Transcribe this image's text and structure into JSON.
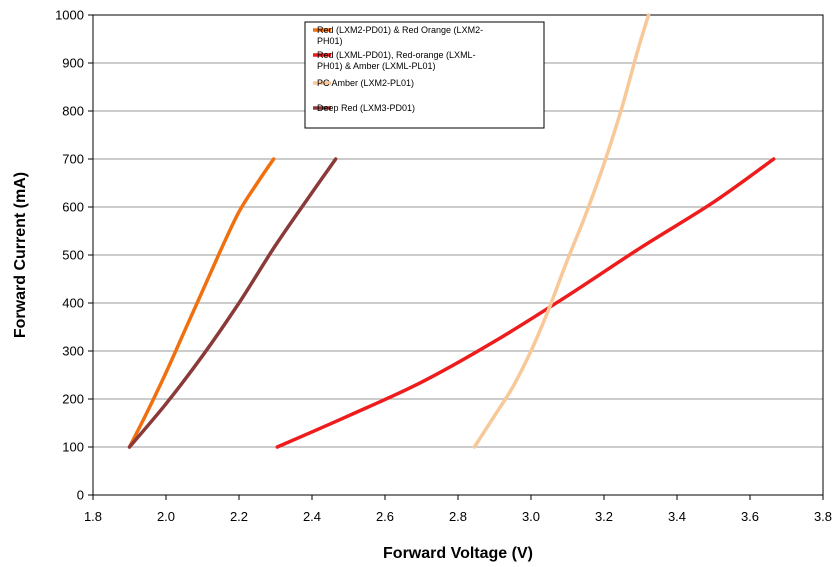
{
  "chart_data": {
    "type": "line",
    "title": "",
    "xlabel": "Forward Voltage (V)",
    "ylabel": "Forward Current (mA)",
    "xlim": [
      1.8,
      3.8
    ],
    "ylim": [
      0,
      1000
    ],
    "xticks": [
      "1.8",
      "2.0",
      "2.2",
      "2.4",
      "2.6",
      "2.8",
      "3.0",
      "3.2",
      "3.4",
      "3.6",
      "3.8"
    ],
    "yticks": [
      "0",
      "100",
      "200",
      "300",
      "400",
      "500",
      "600",
      "700",
      "800",
      "900",
      "1000"
    ],
    "grid": true,
    "legend_position": "top-center",
    "series": [
      {
        "name": "Red (LXM2-PD01) & Red Orange (LXM2-PH01)",
        "legend_lines": [
          "Red (LXM2-PD01) & Red Orange (LXM2-",
          "PH01)"
        ],
        "color": "#F07010",
        "x": [
          1.9,
          1.95,
          2.0,
          2.05,
          2.1,
          2.15,
          2.2,
          2.25,
          2.295
        ],
        "y": [
          100,
          175,
          255,
          340,
          425,
          510,
          590,
          650,
          700
        ]
      },
      {
        "name": "Red (LXML-PD01), Red-orange (LXML-PH01) & Amber (LXML-PL01)",
        "legend_lines": [
          "Red (LXML-PD01), Red-orange (LXML-",
          "PH01) & Amber (LXML-PL01)"
        ],
        "color": "#EE1C1C",
        "x": [
          2.305,
          2.5,
          2.7,
          2.9,
          3.1,
          3.3,
          3.5,
          3.665
        ],
        "y": [
          100,
          165,
          235,
          320,
          415,
          515,
          610,
          700
        ]
      },
      {
        "name": "PC Amber (LXM2-PL01)",
        "legend_lines": [
          "PC Amber (LXM2-PL01)"
        ],
        "color": "#F8C898",
        "x": [
          2.845,
          2.9,
          2.95,
          3.0,
          3.05,
          3.1,
          3.15,
          3.2,
          3.25,
          3.29,
          3.322
        ],
        "y": [
          100,
          165,
          225,
          300,
          390,
          490,
          585,
          690,
          810,
          920,
          1000
        ]
      },
      {
        "name": "Deep Red (LXM3-PD01)",
        "legend_lines": [
          "Deep Red (LXM3-PD01)"
        ],
        "color": "#8B3A3A",
        "x": [
          1.9,
          2.0,
          2.1,
          2.2,
          2.3,
          2.4,
          2.465
        ],
        "y": [
          100,
          190,
          290,
          400,
          520,
          630,
          700
        ]
      }
    ]
  }
}
